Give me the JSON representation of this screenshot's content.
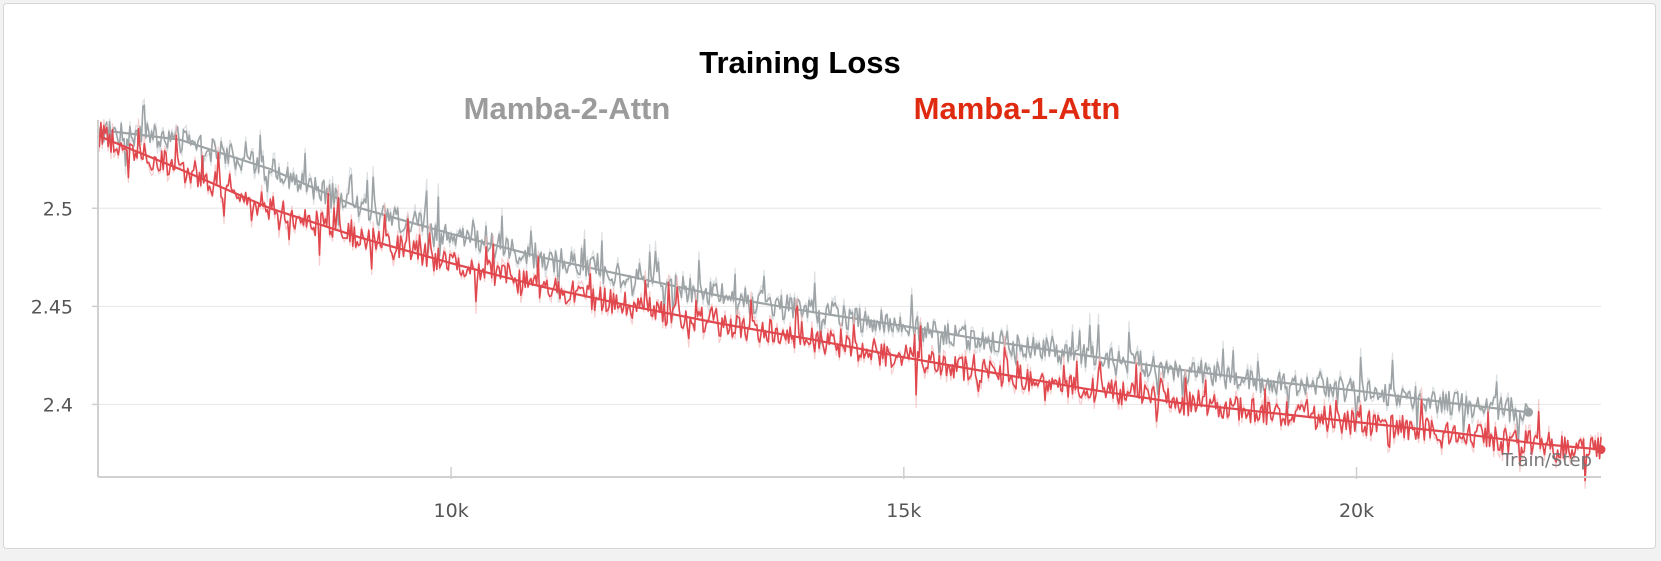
{
  "chart_data": {
    "type": "line",
    "title": "Training Loss",
    "xlabel": "Train/Step",
    "ylabel": "",
    "xlim": [
      6100,
      22700
    ],
    "ylim": [
      2.363,
      2.545
    ],
    "xticks": [
      10000,
      15000,
      20000
    ],
    "xtick_labels": [
      "10k",
      "15k",
      "20k"
    ],
    "yticks": [
      2.4,
      2.45,
      2.5
    ],
    "ytick_labels": [
      "2.4",
      "2.45",
      "2.5"
    ],
    "grid": "horizontal",
    "legend": "top-center",
    "series": [
      {
        "name": "Mamba-2-Attn",
        "color": "#9ea4a6",
        "x": [
          6100,
          7000,
          8000,
          9000,
          10000,
          11000,
          12000,
          13000,
          14000,
          15000,
          16000,
          17000,
          18000,
          19000,
          20000,
          21000,
          21900
        ],
        "values": [
          2.54,
          2.535,
          2.52,
          2.5,
          2.487,
          2.475,
          2.465,
          2.455,
          2.447,
          2.44,
          2.432,
          2.425,
          2.418,
          2.412,
          2.407,
          2.401,
          2.396
        ]
      },
      {
        "name": "Mamba-1-Attn",
        "color": "#e0484e",
        "x": [
          6100,
          7000,
          8000,
          9000,
          10000,
          11000,
          12000,
          13000,
          14000,
          15000,
          16000,
          17000,
          18000,
          19000,
          20000,
          21000,
          22000,
          22700
        ],
        "values": [
          2.537,
          2.52,
          2.5,
          2.485,
          2.472,
          2.46,
          2.45,
          2.441,
          2.433,
          2.424,
          2.416,
          2.408,
          2.401,
          2.396,
          2.391,
          2.386,
          2.38,
          2.377
        ]
      }
    ]
  }
}
